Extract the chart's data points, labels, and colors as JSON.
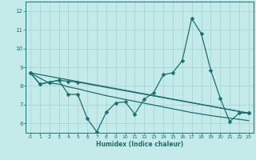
{
  "xlabel": "Humidex (Indice chaleur)",
  "xlim": [
    -0.5,
    23.5
  ],
  "ylim": [
    5.5,
    12.5
  ],
  "xticks": [
    0,
    1,
    2,
    3,
    4,
    5,
    6,
    7,
    8,
    9,
    10,
    11,
    12,
    13,
    14,
    15,
    16,
    17,
    18,
    19,
    20,
    21,
    22,
    23
  ],
  "yticks": [
    6,
    7,
    8,
    9,
    10,
    11,
    12
  ],
  "background_color": "#c5eaea",
  "grid_color": "#a8d5d5",
  "line_color": "#1e6e6e",
  "series": [
    {
      "x": [
        0,
        1,
        2,
        3,
        4,
        5,
        6,
        7,
        8,
        9,
        10,
        11,
        12,
        13,
        14,
        15,
        16,
        17,
        18,
        19,
        20,
        21,
        22,
        23
      ],
      "y": [
        8.7,
        8.1,
        8.2,
        8.3,
        7.55,
        7.55,
        6.25,
        5.55,
        6.6,
        7.1,
        7.15,
        6.5,
        7.3,
        7.65,
        8.6,
        8.7,
        9.35,
        11.6,
        10.8,
        8.85,
        7.35,
        6.1,
        6.55,
        6.55
      ],
      "marker": "D",
      "markersize": 2.5,
      "lw": 0.9
    },
    {
      "x": [
        0,
        1,
        2,
        3,
        4,
        5,
        23
      ],
      "y": [
        8.7,
        8.1,
        8.2,
        8.3,
        8.25,
        8.2,
        6.55
      ],
      "marker": "D",
      "markersize": 2.5,
      "lw": 0.9
    },
    {
      "x": [
        0,
        23
      ],
      "y": [
        8.7,
        6.55
      ],
      "marker": null,
      "markersize": 0,
      "lw": 0.9
    },
    {
      "x": [
        0,
        1,
        2,
        3,
        4,
        5,
        6,
        7,
        8,
        9,
        10,
        11,
        12,
        13,
        14,
        15,
        16,
        17,
        18,
        19,
        20,
        21,
        22,
        23
      ],
      "y": [
        8.7,
        8.42,
        8.15,
        8.1,
        7.95,
        7.85,
        7.72,
        7.6,
        7.48,
        7.38,
        7.28,
        7.18,
        7.08,
        6.98,
        6.88,
        6.78,
        6.68,
        6.58,
        6.5,
        6.42,
        6.35,
        6.28,
        6.22,
        6.15
      ],
      "marker": null,
      "markersize": 0,
      "lw": 0.9
    }
  ]
}
